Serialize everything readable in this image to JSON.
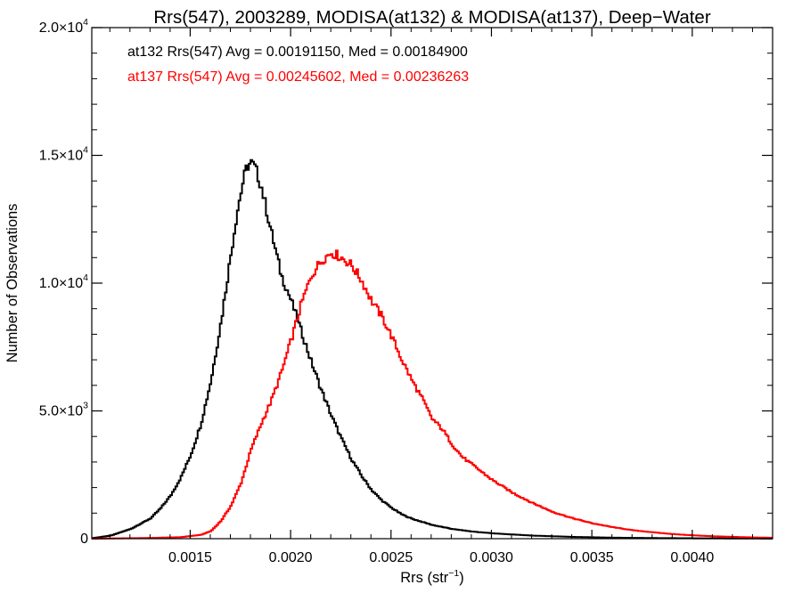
{
  "chart_data": {
    "type": "histogram",
    "title": "Rrs(547), 2003289, MODISA(at132) & MODISA(at137), Deep−Water",
    "xlabel": "Rrs (str",
    "xlabel_sup": "−1",
    "xlabel_close": ")",
    "ylabel": "Number of Observations",
    "xlim": [
      0.00101,
      0.0044
    ],
    "ylim": [
      0,
      20000
    ],
    "grid": false,
    "x_ticks": [
      {
        "value": 0.0015,
        "label": "0.0015"
      },
      {
        "value": 0.002,
        "label": "0.0020"
      },
      {
        "value": 0.0025,
        "label": "0.0025"
      },
      {
        "value": 0.003,
        "label": "0.0030"
      },
      {
        "value": 0.0035,
        "label": "0.0035"
      },
      {
        "value": 0.004,
        "label": "0.0040"
      }
    ],
    "y_ticks": [
      {
        "value": 0,
        "mant": "0",
        "exp": ""
      },
      {
        "value": 5000,
        "mant": "5.0×10",
        "exp": "3"
      },
      {
        "value": 10000,
        "mant": "1.0×10",
        "exp": "4"
      },
      {
        "value": 15000,
        "mant": "1.5×10",
        "exp": "4"
      },
      {
        "value": 20000,
        "mant": "2.0×10",
        "exp": "4"
      }
    ],
    "annotations": [
      {
        "text": "at132 Rrs(547) Avg = 0.00191150, Med = 0.00184900",
        "color": "#000000"
      },
      {
        "text": "at137 Rrs(547) Avg = 0.00245602, Med = 0.00236263",
        "color": "#ff0000"
      }
    ],
    "series": [
      {
        "color": "#000000",
        "points": [
          [
            0.00101,
            20
          ],
          [
            0.0011,
            120
          ],
          [
            0.0012,
            380
          ],
          [
            0.0013,
            800
          ],
          [
            0.00135,
            1200
          ],
          [
            0.0014,
            1700
          ],
          [
            0.00145,
            2400
          ],
          [
            0.0015,
            3300
          ],
          [
            0.00155,
            4500
          ],
          [
            0.0016,
            6200
          ],
          [
            0.00165,
            8500
          ],
          [
            0.0017,
            11200
          ],
          [
            0.00173,
            12800
          ],
          [
            0.00176,
            14000
          ],
          [
            0.00178,
            14600
          ],
          [
            0.0018,
            14700
          ],
          [
            0.00182,
            14500
          ],
          [
            0.00185,
            13800
          ],
          [
            0.0019,
            12000
          ],
          [
            0.00195,
            10300
          ],
          [
            0.002,
            9300
          ],
          [
            0.00205,
            8100
          ],
          [
            0.0021,
            6900
          ],
          [
            0.00215,
            5800
          ],
          [
            0.0022,
            4800
          ],
          [
            0.00225,
            3900
          ],
          [
            0.0023,
            3100
          ],
          [
            0.00235,
            2450
          ],
          [
            0.0024,
            1900
          ],
          [
            0.00245,
            1500
          ],
          [
            0.0025,
            1200
          ],
          [
            0.00255,
            950
          ],
          [
            0.0026,
            780
          ],
          [
            0.0027,
            540
          ],
          [
            0.0028,
            380
          ],
          [
            0.0029,
            280
          ],
          [
            0.003,
            210
          ],
          [
            0.0032,
            120
          ],
          [
            0.0034,
            70
          ],
          [
            0.0036,
            40
          ],
          [
            0.0038,
            25
          ],
          [
            0.004,
            15
          ],
          [
            0.0042,
            10
          ],
          [
            0.0044,
            5
          ]
        ]
      },
      {
        "color": "#ff0000",
        "points": [
          [
            0.00101,
            0
          ],
          [
            0.0013,
            30
          ],
          [
            0.00145,
            60
          ],
          [
            0.00155,
            150
          ],
          [
            0.0016,
            300
          ],
          [
            0.00165,
            700
          ],
          [
            0.0017,
            1300
          ],
          [
            0.00175,
            2200
          ],
          [
            0.0018,
            3500
          ],
          [
            0.00185,
            4500
          ],
          [
            0.0019,
            5400
          ],
          [
            0.00195,
            6500
          ],
          [
            0.002,
            7800
          ],
          [
            0.00205,
            9200
          ],
          [
            0.0021,
            10300
          ],
          [
            0.00215,
            10900
          ],
          [
            0.0022,
            11200
          ],
          [
            0.00225,
            11000
          ],
          [
            0.0023,
            10700
          ],
          [
            0.00235,
            10100
          ],
          [
            0.0024,
            9300
          ],
          [
            0.00245,
            8700
          ],
          [
            0.0025,
            7900
          ],
          [
            0.00255,
            7000
          ],
          [
            0.0026,
            6200
          ],
          [
            0.00265,
            5500
          ],
          [
            0.0027,
            4700
          ],
          [
            0.00275,
            4300
          ],
          [
            0.0028,
            3700
          ],
          [
            0.00285,
            3200
          ],
          [
            0.0029,
            2900
          ],
          [
            0.00295,
            2600
          ],
          [
            0.003,
            2300
          ],
          [
            0.0031,
            1800
          ],
          [
            0.0032,
            1400
          ],
          [
            0.0033,
            1050
          ],
          [
            0.0034,
            800
          ],
          [
            0.0035,
            600
          ],
          [
            0.0036,
            450
          ],
          [
            0.0037,
            330
          ],
          [
            0.0038,
            250
          ],
          [
            0.0039,
            180
          ],
          [
            0.004,
            130
          ],
          [
            0.0041,
            95
          ],
          [
            0.0042,
            70
          ],
          [
            0.0043,
            50
          ],
          [
            0.0044,
            35
          ]
        ]
      }
    ]
  }
}
